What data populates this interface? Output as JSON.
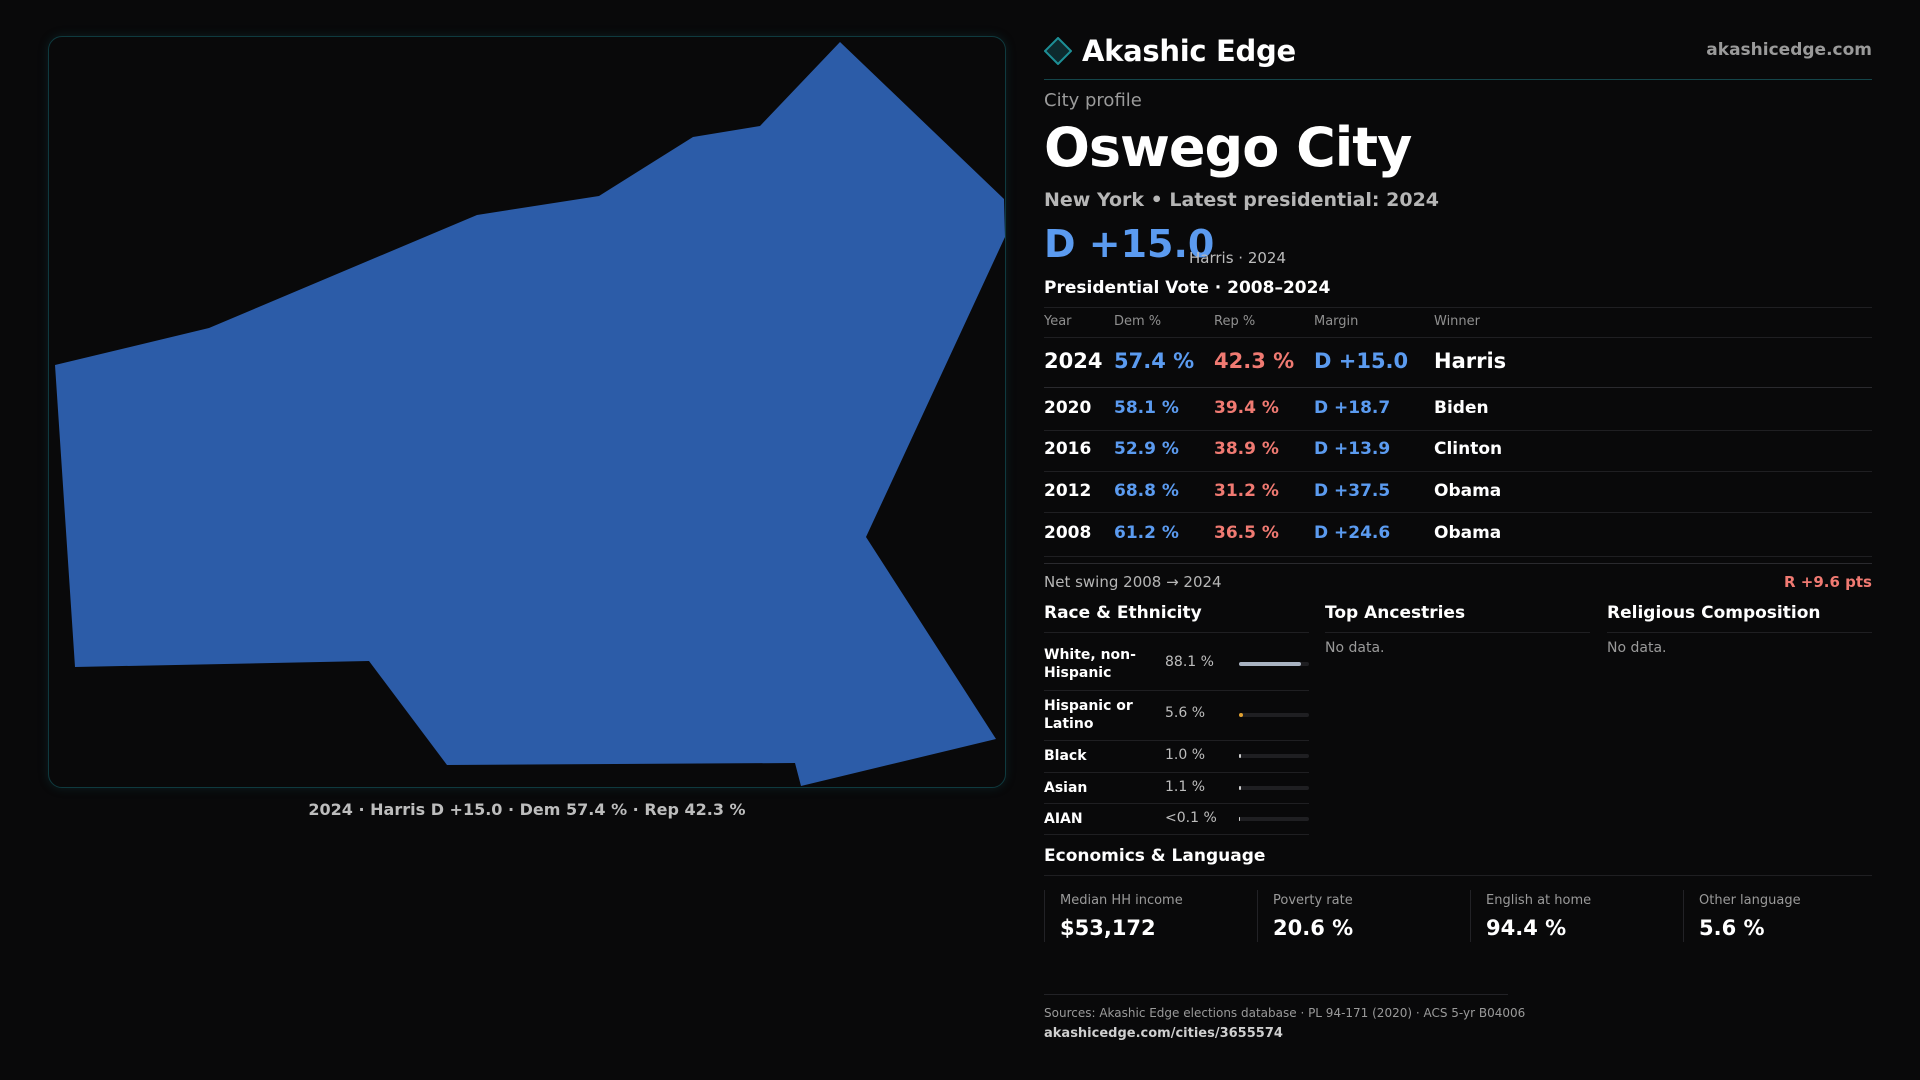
{
  "brand": {
    "name": "Akashic Edge",
    "site": "akashicedge.com"
  },
  "map": {
    "fill_color": "#2c5ca8",
    "caption": "2024 · Harris D +15.0 · Dem 57.4 % · Rep 42.3 %"
  },
  "profile": {
    "eyebrow": "City profile",
    "title": "Oswego City",
    "subtitle": "New York  • Latest presidential: 2024",
    "margin": "D +15.0",
    "margin_note": "Harris · 2024"
  },
  "vote_table": {
    "title": "Presidential Vote · 2008–2024",
    "headers": {
      "year": "Year",
      "dem": "Dem %",
      "rep": "Rep %",
      "margin": "Margin",
      "winner": "Winner"
    },
    "rows": [
      {
        "year": "2024",
        "dem": "57.4 %",
        "rep": "42.3 %",
        "margin": "D +15.0",
        "winner": "Harris"
      },
      {
        "year": "2020",
        "dem": "58.1 %",
        "rep": "39.4 %",
        "margin": "D +18.7",
        "winner": "Biden"
      },
      {
        "year": "2016",
        "dem": "52.9 %",
        "rep": "38.9 %",
        "margin": "D +13.9",
        "winner": "Clinton"
      },
      {
        "year": "2012",
        "dem": "68.8 %",
        "rep": "31.2 %",
        "margin": "D +37.5",
        "winner": "Obama"
      },
      {
        "year": "2008",
        "dem": "61.2 %",
        "rep": "36.5 %",
        "margin": "D +24.6",
        "winner": "Obama"
      }
    ]
  },
  "swing": {
    "label": "Net swing 2008 → 2024",
    "value": "R +9.6 pts"
  },
  "race": {
    "title": "Race & Ethnicity",
    "items": [
      {
        "label": "White, non-Hispanic",
        "value": "88.1 %",
        "fraction": 0.881,
        "color": "#a9b3c2"
      },
      {
        "label": "Hispanic or Latino",
        "value": "5.6 %",
        "fraction": 0.056,
        "color": "#e0a030"
      },
      {
        "label": "Black",
        "value": "1.0 %",
        "fraction": 0.01,
        "color": "#cfcfcf"
      },
      {
        "label": "Asian",
        "value": "1.1 %",
        "fraction": 0.011,
        "color": "#cfcfcf"
      },
      {
        "label": "AIAN",
        "value": "<0.1 %",
        "fraction": 0.0,
        "color": "#cfcfcf"
      }
    ]
  },
  "ancestries": {
    "title": "Top Ancestries",
    "empty": "No data."
  },
  "religion": {
    "title": "Religious Composition",
    "empty": "No data."
  },
  "economics": {
    "title": "Economics & Language",
    "stats": [
      {
        "label": "Median HH income",
        "value": "$53,172"
      },
      {
        "label": "Poverty rate",
        "value": "20.6 %"
      },
      {
        "label": "English at home",
        "value": "94.4 %"
      },
      {
        "label": "Other language",
        "value": "5.6 %"
      }
    ]
  },
  "footer": {
    "sources": "Sources: Akashic Edge elections database · PL 94-171 (2020) · ACS 5-yr B04006",
    "url": "akashicedge.com/cities/3655574"
  }
}
